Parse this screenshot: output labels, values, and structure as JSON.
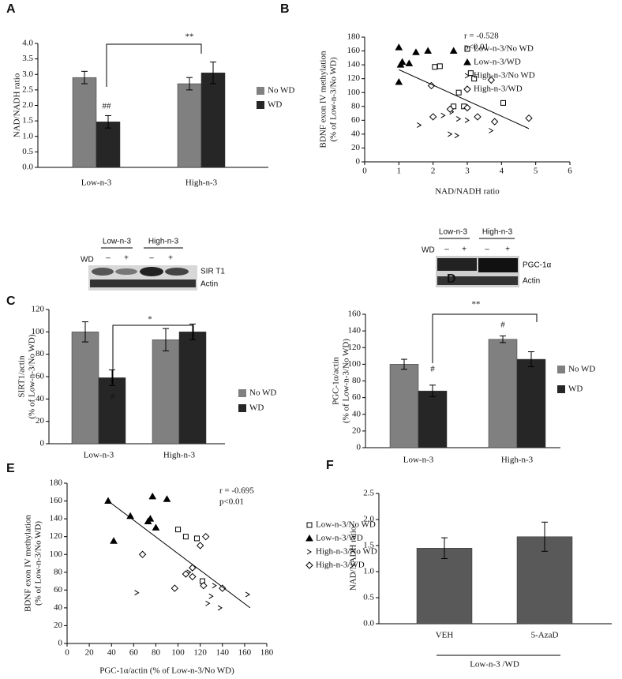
{
  "chart_data": [
    {
      "type": "bar",
      "panel": "A",
      "y_label": [
        "NAD/NADH ratio"
      ],
      "categories": [
        "Low-n-3",
        "High-n-3"
      ],
      "series": [
        {
          "name": "No WD",
          "color": "#808080",
          "values": [
            2.9,
            2.7
          ],
          "errors": [
            0.2,
            0.2
          ]
        },
        {
          "name": "WD",
          "color": "#262626",
          "values": [
            1.47,
            3.05
          ],
          "errors": [
            0.2,
            0.35
          ]
        }
      ],
      "ylim": [
        0,
        4
      ],
      "yticks": [
        {
          "value": 0,
          "label": "0.0"
        },
        {
          "value": 0.5,
          "label": "0.5"
        },
        {
          "value": 1,
          "label": "1.0"
        },
        {
          "value": 1.5,
          "label": "1.5"
        },
        {
          "value": 2,
          "label": "2.0"
        },
        {
          "value": 2.5,
          "label": "2.5"
        },
        {
          "value": 3,
          "label": "3.0"
        },
        {
          "value": 3.5,
          "label": "3.5"
        },
        {
          "value": 4,
          "label": "4.0"
        }
      ],
      "annotations": [
        "##",
        "**"
      ],
      "legend": "right"
    },
    {
      "type": "scatter",
      "panel": "B",
      "x_label": "NAD/NADH ratio",
      "y_label": [
        "BDNF exon IV methylation",
        "(% of Low-n-3/No WD)"
      ],
      "xlim": [
        0,
        6
      ],
      "xticks": [
        0,
        1,
        2,
        3,
        4,
        5,
        6
      ],
      "ylim": [
        0,
        180
      ],
      "yticks": [
        0,
        20,
        40,
        60,
        80,
        100,
        120,
        140,
        160,
        180
      ],
      "annotations": [
        "r = -0.528",
        "p<0.01"
      ],
      "legend": "right",
      "series": [
        {
          "name": "Low-n-3/No WD",
          "marker": "square-open",
          "color": "#000000",
          "x": [
            2.05,
            2.2,
            2.75,
            2.6,
            3.1,
            3.2,
            4.05,
            2.9
          ],
          "values": [
            137,
            138,
            100,
            80,
            128,
            120,
            85,
            80
          ]
        },
        {
          "name": "Low-n-3/WD",
          "marker": "triangle",
          "color": "#000000",
          "x": [
            1.0,
            1.05,
            1.3,
            1.5,
            1.85,
            2.6,
            1.0,
            1.1
          ],
          "values": [
            165,
            140,
            142,
            158,
            160,
            160,
            115,
            144
          ]
        },
        {
          "name": "High-n-3/No WD",
          "marker": "chevron",
          "color": "#000000",
          "x": [
            1.6,
            2.3,
            2.5,
            2.7,
            3.0,
            3.7,
            2.55,
            2.75
          ],
          "values": [
            53,
            67,
            40,
            38,
            60,
            45,
            72,
            62
          ]
        },
        {
          "name": "High-n-3/WD",
          "marker": "diamond-open",
          "color": "#000000",
          "x": [
            1.95,
            2.0,
            3.0,
            3.3,
            3.7,
            3.8,
            4.8,
            2.5
          ],
          "values": [
            110,
            65,
            78,
            65,
            118,
            58,
            63,
            76
          ]
        }
      ],
      "trend_line": {
        "x": [
          1,
          4.8
        ],
        "y": [
          133,
          48
        ]
      }
    },
    {
      "type": "bar",
      "panel": "C",
      "y_label": [
        "SIRT1/actin",
        "(% of Low-n-3/No WD)"
      ],
      "categories": [
        "Low-n-3",
        "High-n-3"
      ],
      "series": [
        {
          "name": "No WD",
          "color": "#808080",
          "values": [
            100,
            93
          ],
          "errors": [
            9,
            10
          ]
        },
        {
          "name": "WD",
          "color": "#262626",
          "values": [
            59,
            100
          ],
          "errors": [
            7,
            7
          ]
        }
      ],
      "ylim": [
        0,
        120
      ],
      "yticks": [
        0,
        20,
        40,
        60,
        80,
        100,
        120
      ],
      "annotations": [
        "#",
        "*"
      ],
      "legend": "right"
    },
    {
      "type": "bar",
      "panel": "D",
      "y_label": [
        "PGC-1α/actin",
        "(% of Low-n-3/No WD)"
      ],
      "categories": [
        "Low-n-3",
        "High-n-3"
      ],
      "series": [
        {
          "name": "No WD",
          "color": "#808080",
          "values": [
            100,
            130
          ],
          "errors": [
            6,
            4
          ]
        },
        {
          "name": "WD",
          "color": "#262626",
          "values": [
            68,
            106
          ],
          "errors": [
            7,
            9
          ]
        }
      ],
      "ylim": [
        0,
        160
      ],
      "yticks": [
        0,
        20,
        40,
        60,
        80,
        100,
        120,
        140,
        160
      ],
      "annotations": [
        "#",
        "#",
        "**"
      ],
      "legend": "right"
    },
    {
      "type": "scatter",
      "panel": "E",
      "x_label": "PGC-1α/actin (% of Low-n-3/No WD)",
      "y_label": [
        "BDNF exon IV methylation",
        "(% of Low-n-3/No WD)"
      ],
      "xlim": [
        0,
        180
      ],
      "xticks": [
        0,
        20,
        40,
        60,
        80,
        100,
        120,
        140,
        160,
        180
      ],
      "ylim": [
        0,
        180
      ],
      "yticks": [
        0,
        20,
        40,
        60,
        80,
        100,
        120,
        140,
        160,
        180
      ],
      "annotations": [
        "r = -0.695",
        "p<0.01"
      ],
      "legend": "right",
      "series": [
        {
          "name": "Low-n-3/No WD",
          "marker": "square-open",
          "color": "#000000",
          "x": [
            100,
            107,
            117,
            122
          ],
          "values": [
            128,
            120,
            118,
            70
          ]
        },
        {
          "name": "Low-n-3/WD",
          "marker": "triangle",
          "color": "#000000",
          "x": [
            37,
            42,
            57,
            73,
            77,
            75,
            80,
            90
          ],
          "values": [
            160,
            115,
            143,
            137,
            165,
            140,
            130,
            162
          ]
        },
        {
          "name": "High-n-3/No WD",
          "marker": "chevron",
          "color": "#000000",
          "x": [
            63,
            110,
            127,
            130,
            133,
            138,
            163
          ],
          "values": [
            57,
            80,
            45,
            53,
            65,
            40,
            55
          ]
        },
        {
          "name": "High-n-3/WD",
          "marker": "diamond-open",
          "color": "#000000",
          "x": [
            68,
            97,
            107,
            113,
            120,
            125,
            113,
            140,
            123
          ],
          "values": [
            100,
            62,
            78,
            85,
            110,
            120,
            75,
            62,
            65
          ]
        }
      ],
      "trend_line": {
        "x": [
          37,
          165
        ],
        "y": [
          160,
          40
        ]
      }
    },
    {
      "type": "bar",
      "panel": "F",
      "y_label": [
        "NAD/NADH ratio"
      ],
      "categories": [
        "VEH",
        "5-AzaD"
      ],
      "group_label": "Low-n-3 /WD",
      "series": [
        {
          "color": "#595959",
          "values": [
            1.45,
            1.67
          ],
          "errors": [
            0.2,
            0.28
          ]
        }
      ],
      "ylim": [
        0,
        2.5
      ],
      "yticks": [
        {
          "value": 0,
          "label": "0.0"
        },
        {
          "value": 0.5,
          "label": "0.5"
        },
        {
          "value": 1,
          "label": "1.0"
        },
        {
          "value": 1.5,
          "label": "1.5"
        },
        {
          "value": 2,
          "label": "2.0"
        },
        {
          "value": 2.5,
          "label": "2.5"
        }
      ]
    }
  ],
  "blots": [
    {
      "groups": [
        "Low-n-3",
        "High-n-3"
      ],
      "row_label": "WD",
      "lanes": [
        "–",
        "+",
        "–",
        "+"
      ],
      "bands": [
        "SIR T1",
        "Actin"
      ]
    },
    {
      "groups": [
        "Low-n-3",
        "High-n-3"
      ],
      "row_label": "WD",
      "lanes": [
        "–",
        "+",
        "–",
        "+"
      ],
      "bands": [
        "PGC-1α",
        "Actin"
      ]
    }
  ]
}
